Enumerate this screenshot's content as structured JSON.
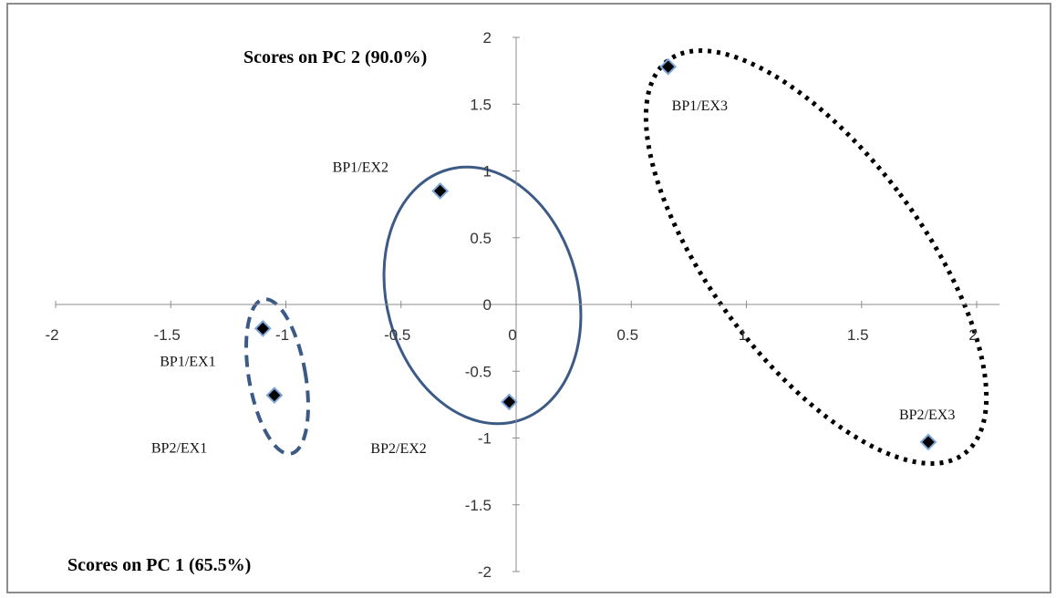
{
  "chart_data": {
    "type": "scatter",
    "title": "",
    "xlabel": "Scores on PC 1 (65.5%)",
    "ylabel": "Scores on PC 2 (90.0%)",
    "xlim": [
      -2,
      2.1
    ],
    "ylim": [
      -2,
      2
    ],
    "x_ticks": [
      "-2",
      "-1.5",
      "-1",
      "-0.5",
      "0",
      "0.5",
      "1",
      "1.5",
      "2"
    ],
    "y_ticks": [
      "-2",
      "-1.5",
      "-1",
      "-0.5",
      "0",
      "0.5",
      "1",
      "1.5",
      "2"
    ],
    "grid": false,
    "marker": "black diamond with blue outline",
    "series": [
      {
        "points": [
          {
            "label": "BP1/EX1",
            "x": -1.1,
            "y": -0.18
          },
          {
            "label": "BP2/EX1",
            "x": -1.05,
            "y": -0.68
          },
          {
            "label": "BP1/EX2",
            "x": -0.33,
            "y": 0.85
          },
          {
            "label": "BP2/EX2",
            "x": -0.03,
            "y": -0.73
          },
          {
            "label": "BP1/EX3",
            "x": 0.66,
            "y": 1.78
          },
          {
            "label": "BP2/EX3",
            "x": 1.79,
            "y": -1.03
          }
        ]
      }
    ],
    "annotations": [
      {
        "shape": "dashed ellipse",
        "color": "#3c5a86",
        "encloses": [
          "BP1/EX1",
          "BP2/EX1"
        ]
      },
      {
        "shape": "solid ellipse",
        "color": "#3c5a86",
        "encloses": [
          "BP1/EX2",
          "BP2/EX2"
        ]
      },
      {
        "shape": "dotted ellipse",
        "color": "#000000",
        "encloses": [
          "BP1/EX3",
          "BP2/EX3"
        ]
      }
    ]
  }
}
